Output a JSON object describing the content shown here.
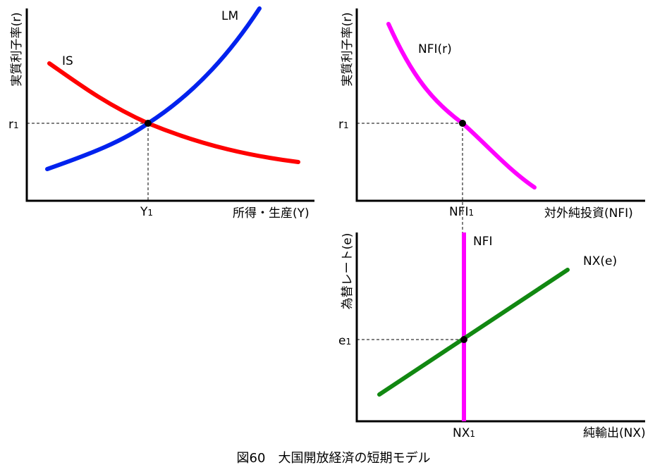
{
  "caption": "図60　大国開放経済の短期モデル",
  "panel_is_lm": {
    "y_label": "実質利子率(r)",
    "x_label": "所得・生産(Y)",
    "tick_y": "r",
    "tick_x": "Y",
    "subscript": "1",
    "curve_is": "IS",
    "curve_lm": "LM",
    "colors": {
      "is": "#ff0000",
      "lm": "#0022ee"
    }
  },
  "panel_nfi": {
    "y_label": "実質利子率(r)",
    "x_label": "対外純投資(NFI)",
    "tick_y": "r",
    "tick_x": "NFI",
    "subscript": "1",
    "curve": "NFI(r)",
    "color": "#ff00ff"
  },
  "panel_fx": {
    "y_label": "為替レート(e)",
    "x_label": "純輸出(NX)",
    "tick_y": "e",
    "tick_x": "NX",
    "subscript": "1",
    "curve_nfi": "NFI",
    "curve_nx": "NX(e)",
    "colors": {
      "nfi": "#ff00ff",
      "nx": "#118811"
    }
  }
}
